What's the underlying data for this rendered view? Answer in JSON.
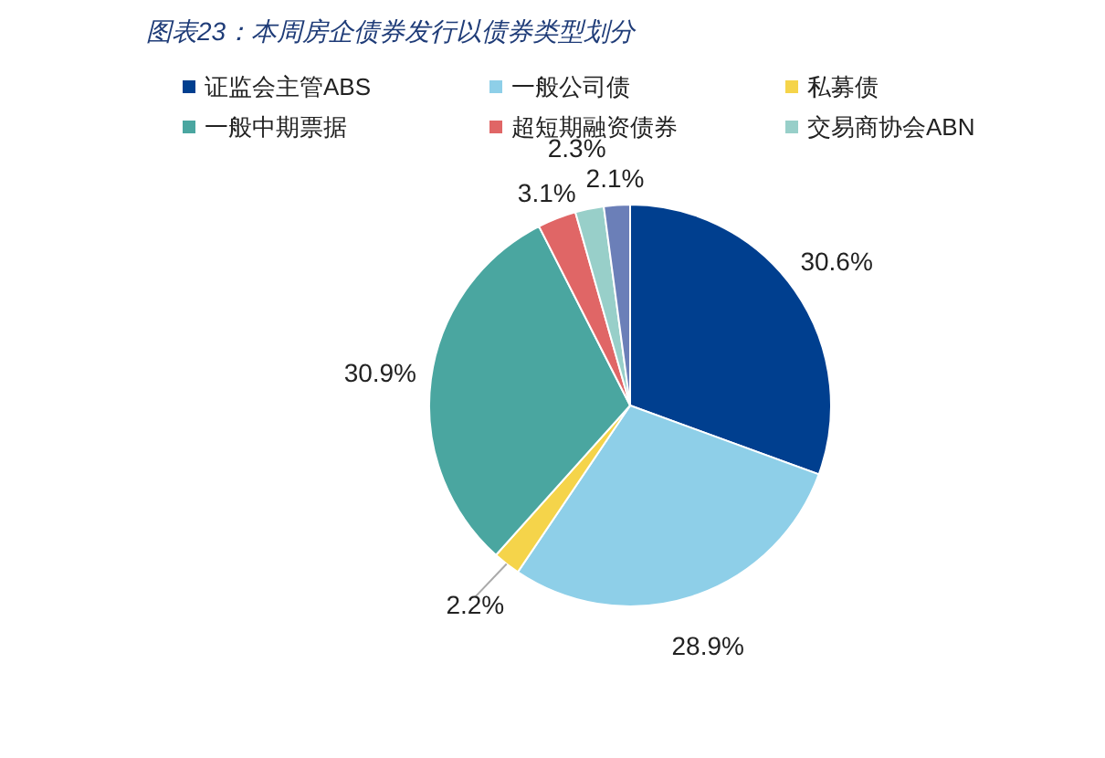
{
  "chart_data": {
    "type": "pie",
    "title": "图表23：本周房企债券发行以债券类型划分",
    "categories": [
      "证监会主管ABS",
      "一般公司债",
      "私募债",
      "一般中期票据",
      "超短期融资债券",
      "交易商协会ABN",
      null
    ],
    "values": [
      30.6,
      28.9,
      2.2,
      30.9,
      3.1,
      2.3,
      2.1
    ],
    "colors": [
      "#003f8f",
      "#8ecfe8",
      "#f5d44a",
      "#4aa6a0",
      "#e06666",
      "#98cfc9",
      "#6b7fb8"
    ],
    "value_labels": [
      "30.6%",
      "28.9%",
      "2.2%",
      "30.9%",
      "3.1%",
      "2.3%",
      "2.1%"
    ],
    "legend": "top"
  }
}
